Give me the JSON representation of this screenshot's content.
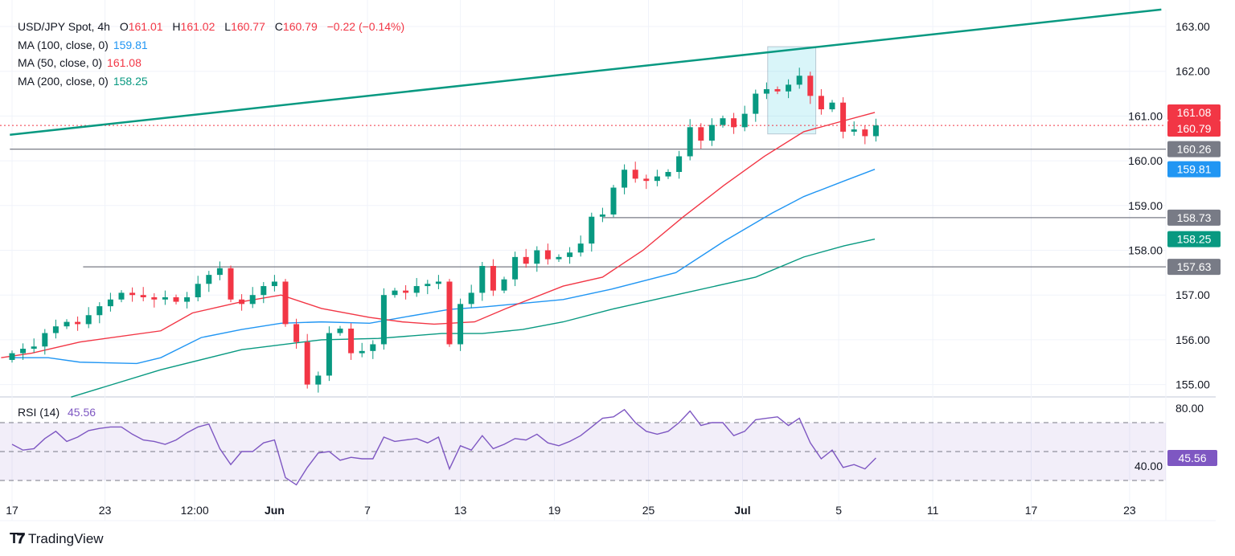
{
  "legend": {
    "symbol": "USD/JPY Spot, 4h",
    "o_label": "O",
    "o": "161.01",
    "h_label": "H",
    "h": "161.02",
    "l_label": "L",
    "l": "160.77",
    "c_label": "C",
    "c": "160.79",
    "change": "−0.22 (−0.14%)",
    "ma100_label": "MA (100, close, 0)",
    "ma100": "159.81",
    "ma50_label": "MA (50, close, 0)",
    "ma50": "161.08",
    "ma200_label": "MA (200, close, 0)",
    "ma200": "158.25",
    "rsi_label": "RSI (14)",
    "rsi": "45.56"
  },
  "branding": "TradingView",
  "colors": {
    "up": "#089981",
    "down": "#f23645",
    "ma50": "#f23645",
    "ma100": "#2196f3",
    "ma200": "#089981",
    "trend": "#089981",
    "rsi": "#7e57c2",
    "level": "#787b86"
  },
  "chart_data": {
    "type": "candlestick",
    "title": "USD/JPY Spot, 4h",
    "ylim": [
      154.75,
      163.4
    ],
    "y_ticks": [
      "163.00",
      "162.00",
      "161.00",
      "160.00",
      "159.00",
      "158.00",
      "157.00",
      "156.00",
      "155.00"
    ],
    "x_ticks": [
      {
        "label": "17",
        "i": 0
      },
      {
        "label": "23",
        "i": 8.5
      },
      {
        "label": "12:00",
        "i": 16.7
      },
      {
        "label": "Jun",
        "i": 24,
        "bold": true
      },
      {
        "label": "7",
        "i": 32.5
      },
      {
        "label": "13",
        "i": 41
      },
      {
        "label": "19",
        "i": 49.6
      },
      {
        "label": "25",
        "i": 58.2
      },
      {
        "label": "Jul",
        "i": 66.8,
        "bold": true
      },
      {
        "label": "5",
        "i": 75.6
      },
      {
        "label": "11",
        "i": 84.2
      },
      {
        "label": "17",
        "i": 93.2
      },
      {
        "label": "23",
        "i": 102.2
      }
    ],
    "first_open": 155.55,
    "close": [
      155.7,
      155.8,
      155.85,
      156.15,
      156.3,
      156.4,
      156.35,
      156.55,
      156.75,
      156.9,
      157.05,
      157.0,
      156.95,
      156.9,
      156.95,
      156.85,
      156.95,
      157.25,
      157.45,
      157.6,
      156.9,
      156.8,
      157.0,
      157.2,
      157.3,
      156.35,
      155.95,
      155.0,
      155.2,
      156.15,
      156.25,
      155.7,
      155.75,
      155.9,
      157.0,
      157.1,
      157.05,
      157.2,
      157.25,
      157.3,
      155.9,
      156.8,
      157.05,
      157.65,
      157.1,
      157.35,
      157.85,
      157.7,
      158.0,
      157.8,
      157.85,
      157.95,
      158.15,
      158.75,
      158.8,
      159.4,
      159.8,
      159.6,
      159.55,
      159.65,
      159.75,
      160.1,
      160.75,
      160.45,
      160.8,
      160.95,
      160.75,
      161.05,
      161.5,
      161.6,
      161.55,
      161.7,
      161.9,
      161.45,
      161.15,
      161.3,
      160.65,
      160.7,
      160.55,
      160.79
    ],
    "ma50": [
      [
        -1,
        155.6
      ],
      [
        1.8,
        155.7
      ],
      [
        6.2,
        155.95
      ],
      [
        13.6,
        156.2
      ],
      [
        16.5,
        156.6
      ],
      [
        21,
        156.85
      ],
      [
        24.6,
        157.0
      ],
      [
        28.3,
        156.7
      ],
      [
        32.7,
        156.5
      ],
      [
        35.7,
        156.4
      ],
      [
        38.6,
        156.35
      ],
      [
        42.3,
        156.4
      ],
      [
        45.2,
        156.7
      ],
      [
        50.4,
        157.2
      ],
      [
        54,
        157.4
      ],
      [
        57.7,
        158.0
      ],
      [
        61.4,
        158.75
      ],
      [
        65.1,
        159.45
      ],
      [
        68.8,
        160.1
      ],
      [
        72.4,
        160.65
      ],
      [
        75.4,
        160.85
      ],
      [
        78.9,
        161.08
      ]
    ],
    "ma100": [
      [
        -0.2,
        155.6
      ],
      [
        3.3,
        155.6
      ],
      [
        6.2,
        155.5
      ],
      [
        11.4,
        155.47
      ],
      [
        13.6,
        155.6
      ],
      [
        17.3,
        156.05
      ],
      [
        21,
        156.23
      ],
      [
        24.6,
        156.37
      ],
      [
        28.3,
        156.4
      ],
      [
        32.7,
        156.37
      ],
      [
        35.7,
        156.5
      ],
      [
        40,
        156.68
      ],
      [
        43,
        156.73
      ],
      [
        50.4,
        156.9
      ],
      [
        54.8,
        157.13
      ],
      [
        60.7,
        157.5
      ],
      [
        65.1,
        158.2
      ],
      [
        69.5,
        158.83
      ],
      [
        72.4,
        159.2
      ],
      [
        76.1,
        159.55
      ],
      [
        78.9,
        159.81
      ]
    ],
    "ma200": [
      [
        5.4,
        154.72
      ],
      [
        13.6,
        155.33
      ],
      [
        21,
        155.78
      ],
      [
        28.3,
        156.0
      ],
      [
        33.5,
        156.03
      ],
      [
        39.3,
        156.14
      ],
      [
        43,
        156.14
      ],
      [
        46.7,
        156.23
      ],
      [
        50.4,
        156.4
      ],
      [
        54.8,
        156.68
      ],
      [
        61.4,
        157.04
      ],
      [
        68,
        157.4
      ],
      [
        72.4,
        157.85
      ],
      [
        76.1,
        158.1
      ],
      [
        78.9,
        158.25
      ]
    ],
    "trendline": [
      [
        -0.2,
        160.58
      ],
      [
        105.1,
        163.38
      ]
    ],
    "levels": [
      {
        "value": 160.26,
        "from": -0.2,
        "label": "160.26"
      },
      {
        "value": 158.73,
        "from": 54,
        "label": "158.73"
      },
      {
        "value": 157.63,
        "from": 6.5,
        "label": "157.63"
      }
    ],
    "highlight_box": {
      "from": 69.1,
      "to": 73.5,
      "top": 162.55,
      "bottom": 160.6
    },
    "last_price": 160.79,
    "price_labels": [
      {
        "value": 161.08,
        "label": "161.08",
        "color": "#f23645"
      },
      {
        "value": 160.79,
        "label": "160.79",
        "color": "#f23645"
      },
      {
        "value": 160.26,
        "label": "160.26",
        "color": "#787b86"
      },
      {
        "value": 159.81,
        "label": "159.81",
        "color": "#2196f3"
      },
      {
        "value": 158.73,
        "label": "158.73",
        "color": "#787b86"
      },
      {
        "value": 158.25,
        "label": "158.25",
        "color": "#089981"
      },
      {
        "value": 157.63,
        "label": "157.63",
        "color": "#787b86"
      }
    ],
    "rsi": {
      "period": 14,
      "overbought": 70,
      "middle": 50,
      "oversold": 30,
      "y_ticks": [
        "80.00",
        "40.00"
      ],
      "last_label": "45.56",
      "values": [
        55,
        51,
        52,
        59,
        64,
        57,
        60,
        64.5,
        66,
        67,
        67,
        62,
        58,
        57,
        55,
        58,
        63,
        67,
        69,
        52,
        41,
        50,
        50,
        56,
        58,
        32,
        27,
        39,
        49,
        50,
        44,
        46,
        45,
        45,
        60,
        57,
        58,
        59,
        56,
        60,
        38,
        54,
        51,
        61,
        52,
        55,
        59,
        58,
        62,
        56,
        54,
        57,
        61,
        67,
        73,
        74,
        79,
        70,
        64,
        62,
        64,
        70,
        78,
        68,
        70,
        70,
        61,
        64,
        72,
        73,
        74,
        68,
        73,
        56,
        45,
        51,
        39,
        41,
        38,
        45.56
      ]
    }
  }
}
